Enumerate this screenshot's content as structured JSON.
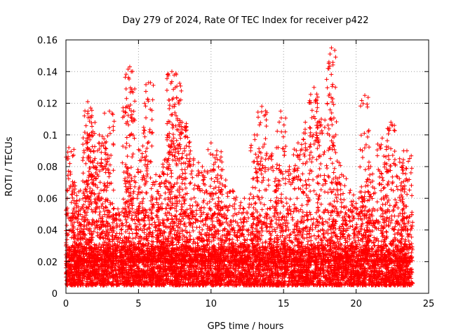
{
  "chart_data": {
    "type": "scatter",
    "title": "Day 279 of 2024, Rate Of TEC Index for receiver p422",
    "xlabel": "GPS time / hours",
    "ylabel": "ROTI / TECUs",
    "xlim": [
      0,
      25
    ],
    "ylim": [
      0,
      0.16
    ],
    "x_ticks": [
      0,
      5,
      10,
      15,
      20,
      25
    ],
    "x_tick_labels": [
      "0",
      "5",
      "10",
      "15",
      "20",
      "25"
    ],
    "y_ticks": [
      0,
      0.02,
      0.04,
      0.06,
      0.08,
      0.1,
      0.12,
      0.14,
      0.16
    ],
    "y_tick_labels": [
      "0",
      "0.02",
      "0.04",
      "0.06",
      "0.08",
      "0.1",
      "0.12",
      "0.14",
      "0.16"
    ],
    "grid": true,
    "marker": "+",
    "series": [
      {
        "name": "ROTI",
        "color": "#ff0000",
        "x_range": [
          0,
          23.9
        ],
        "baseline_range": [
          0.005,
          0.03
        ],
        "spikes": [
          [
            0.2,
            0.092
          ],
          [
            0.6,
            0.07
          ],
          [
            1.0,
            0.065
          ],
          [
            1.5,
            0.121
          ],
          [
            1.7,
            0.117
          ],
          [
            1.9,
            0.09
          ],
          [
            2.3,
            0.1
          ],
          [
            2.7,
            0.095
          ],
          [
            3.0,
            0.115
          ],
          [
            3.5,
            0.05
          ],
          [
            4.2,
            0.118
          ],
          [
            4.4,
            0.143
          ],
          [
            4.8,
            0.07
          ],
          [
            5.3,
            0.093
          ],
          [
            5.7,
            0.133
          ],
          [
            6.2,
            0.075
          ],
          [
            6.6,
            0.07
          ],
          [
            7.0,
            0.1
          ],
          [
            7.3,
            0.14
          ],
          [
            7.6,
            0.138
          ],
          [
            8.0,
            0.108
          ],
          [
            8.3,
            0.105
          ],
          [
            8.8,
            0.085
          ],
          [
            9.4,
            0.08
          ],
          [
            10.0,
            0.095
          ],
          [
            10.4,
            0.09
          ],
          [
            10.8,
            0.078
          ],
          [
            11.5,
            0.065
          ],
          [
            12.3,
            0.06
          ],
          [
            13.0,
            0.1
          ],
          [
            13.5,
            0.118
          ],
          [
            14.2,
            0.088
          ],
          [
            14.8,
            0.115
          ],
          [
            15.4,
            0.08
          ],
          [
            16.0,
            0.095
          ],
          [
            16.5,
            0.108
          ],
          [
            17.1,
            0.13
          ],
          [
            17.6,
            0.11
          ],
          [
            18.3,
            0.155
          ],
          [
            18.6,
            0.1
          ],
          [
            19.0,
            0.075
          ],
          [
            19.6,
            0.065
          ],
          [
            20.2,
            0.06
          ],
          [
            20.6,
            0.125
          ],
          [
            21.0,
            0.08
          ],
          [
            21.8,
            0.098
          ],
          [
            22.4,
            0.108
          ],
          [
            23.0,
            0.085
          ],
          [
            23.5,
            0.09
          ]
        ]
      }
    ]
  }
}
